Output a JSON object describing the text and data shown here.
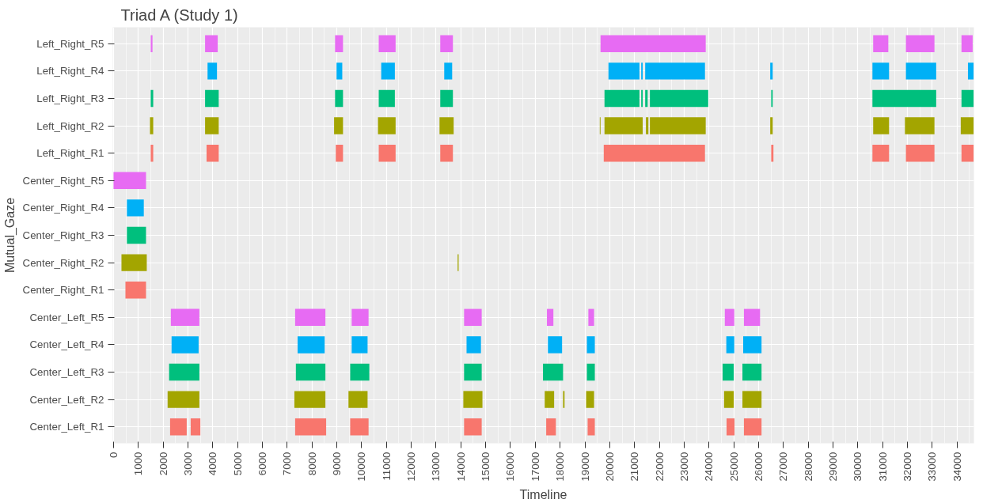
{
  "chart_data": {
    "type": "bar",
    "orientation": "horizontal",
    "title": "Triad A (Study 1)",
    "xlabel": "Timeline",
    "ylabel": "Mutual_Gaze",
    "categories": [
      "Left_Right_R5",
      "Left_Right_R4",
      "Left_Right_R3",
      "Left_Right_R2",
      "Left_Right_R1",
      "Center_Right_R5",
      "Center_Right_R4",
      "Center_Right_R3",
      "Center_Right_R2",
      "Center_Right_R1",
      "Center_Left_R5",
      "Center_Left_R4",
      "Center_Left_R3",
      "Center_Left_R2",
      "Center_Left_R1"
    ],
    "series": [
      {
        "colors": [
          "#e76bf3",
          "#00b0f6",
          "#00bf7d",
          "#a3a500",
          "#f8766d",
          "#e76bf3",
          "#00b0f6",
          "#00bf7d",
          "#a3a500",
          "#f8766d",
          "#e76bf3",
          "#00b0f6",
          "#00bf7d",
          "#a3a500",
          "#f8766d"
        ],
        "base": [
          1500,
          3790,
          1500,
          1470,
          1500,
          0,
          540,
          540,
          320,
          480,
          2310,
          2340,
          2240,
          2180,
          2280
        ],
        "values": [
          70,
          380,
          100,
          130,
          100,
          1310,
          680,
          770,
          1020,
          830,
          1150,
          1090,
          1220,
          1280,
          670
        ]
      },
      {
        "colors": [
          "#e76bf3",
          "#00b0f6",
          "#00bf7d",
          "#a3a500",
          "#f8766d",
          null,
          null,
          null,
          "#a3a500",
          null,
          "#e76bf3",
          "#00b0f6",
          "#00bf7d",
          "#a3a500",
          "#f8766d"
        ],
        "base": [
          3690,
          8990,
          3690,
          3690,
          3750,
          null,
          null,
          null,
          13870,
          null,
          7320,
          7420,
          7350,
          7290,
          3110
        ],
        "values": [
          510,
          230,
          550,
          550,
          490,
          null,
          null,
          null,
          40,
          null,
          1220,
          1090,
          1190,
          1250,
          390
        ]
      },
      {
        "colors": [
          "#e76bf3",
          "#00b0f6",
          "#00bf7d",
          "#a3a500",
          "#f8766d",
          null,
          null,
          null,
          null,
          null,
          "#e76bf3",
          "#00b0f6",
          "#00bf7d",
          "#a3a500",
          "#f8766d"
        ],
        "base": [
          8930,
          10790,
          8930,
          8890,
          8960,
          null,
          null,
          null,
          null,
          null,
          9600,
          9600,
          9540,
          9470,
          7320
        ],
        "values": [
          320,
          550,
          320,
          360,
          290,
          null,
          null,
          null,
          null,
          null,
          680,
          640,
          770,
          770,
          1250
        ]
      },
      {
        "colors": [
          "#e76bf3",
          "#00b0f6",
          "#00bf7d",
          "#a3a500",
          "#f8766d",
          null,
          null,
          null,
          null,
          null,
          "#e76bf3",
          "#00b0f6",
          "#00bf7d",
          "#a3a500",
          "#f8766d"
        ],
        "base": [
          10690,
          13330,
          10690,
          10660,
          10690,
          null,
          null,
          null,
          null,
          null,
          14130,
          14230,
          14130,
          14100,
          9540
        ],
        "values": [
          680,
          320,
          650,
          710,
          680,
          null,
          null,
          null,
          null,
          null,
          710,
          580,
          710,
          770,
          740
        ]
      },
      {
        "colors": [
          "#e76bf3",
          "#00b0f6",
          "#00bf7d",
          "#a3a500",
          "#f8766d",
          null,
          null,
          null,
          null,
          null,
          "#e76bf3",
          "#00b0f6",
          "#00bf7d",
          "#a3a500",
          "#f8766d"
        ],
        "base": [
          13170,
          19950,
          13170,
          13140,
          13170,
          null,
          null,
          null,
          null,
          null,
          17470,
          17510,
          17310,
          17380,
          14130
        ],
        "values": [
          510,
          1250,
          510,
          570,
          510,
          null,
          null,
          null,
          null,
          null,
          260,
          570,
          810,
          380,
          710
        ]
      },
      {
        "colors": [
          "#e76bf3",
          "#00b0f6",
          "#00bf7d",
          "#a3a500",
          "#f8766d",
          null,
          null,
          null,
          null,
          null,
          "#e76bf3",
          "#00b0f6",
          "#00bf7d",
          "#a3a500",
          "#f8766d"
        ],
        "base": [
          19630,
          21270,
          19790,
          19600,
          19760,
          null,
          null,
          null,
          null,
          null,
          19140,
          19080,
          19080,
          18120,
          17440
        ],
        "values": [
          4240,
          60,
          1410,
          30,
          4080,
          null,
          null,
          null,
          null,
          null,
          230,
          320,
          320,
          60,
          390
        ]
      },
      {
        "colors": [
          "#e76bf3",
          "#00b0f6",
          "#00bf7d",
          "#a3a500",
          "#f8766d",
          null,
          null,
          null,
          null,
          null,
          "#e76bf3",
          "#00b0f6",
          "#00bf7d",
          "#a3a500",
          "#f8766d"
        ],
        "base": [
          30620,
          21430,
          21270,
          19790,
          26510,
          null,
          null,
          null,
          null,
          null,
          24640,
          24700,
          24550,
          19050,
          19110
        ],
        "values": [
          610,
          2410,
          60,
          1540,
          90,
          null,
          null,
          null,
          null,
          null,
          380,
          320,
          450,
          320,
          290
        ]
      },
      {
        "colors": [
          "#e76bf3",
          "#00b0f6",
          "#00bf7d",
          "#a3a500",
          "#f8766d",
          null,
          null,
          null,
          null,
          null,
          "#e76bf3",
          "#00b0f6",
          "#00bf7d",
          "#a3a500",
          "#f8766d"
        ],
        "base": [
          31940,
          26470,
          21430,
          21460,
          30590,
          null,
          null,
          null,
          null,
          null,
          25410,
          25380,
          25350,
          24610,
          24710
        ],
        "values": [
          1150,
          100,
          100,
          100,
          670,
          null,
          null,
          null,
          null,
          null,
          650,
          740,
          770,
          390,
          320
        ]
      },
      {
        "colors": [
          "#e76bf3",
          "#00b0f6",
          "#00bf7d",
          "#a3a500",
          "#f8766d",
          null,
          null,
          null,
          null,
          null,
          null,
          null,
          null,
          "#a3a500",
          "#f8766d"
        ],
        "base": [
          34180,
          30590,
          21620,
          21620,
          31940,
          null,
          null,
          null,
          null,
          null,
          null,
          null,
          null,
          25350,
          25410
        ],
        "values": [
          450,
          670,
          2350,
          2250,
          1150,
          null,
          null,
          null,
          null,
          null,
          null,
          null,
          null,
          770,
          710
        ]
      },
      {
        "colors": [
          null,
          "#00b0f6",
          "#00bf7d",
          "#a3a500",
          "#f8766d",
          null,
          null,
          null,
          null,
          null,
          null,
          null,
          null,
          null,
          null
        ],
        "base": [
          null,
          31940,
          26510,
          26470,
          34180,
          null,
          null,
          null,
          null,
          null,
          null,
          null,
          null,
          null,
          null
        ],
        "values": [
          null,
          1220,
          60,
          100,
          490,
          null,
          null,
          null,
          null,
          null,
          null,
          null,
          null,
          null,
          null
        ]
      },
      {
        "colors": [
          null,
          "#00b0f6",
          "#00bf7d",
          "#a3a500",
          null,
          null,
          null,
          null,
          null,
          null,
          null,
          null,
          null,
          null,
          null
        ],
        "base": [
          null,
          34440,
          30590,
          30620,
          null,
          null,
          null,
          null,
          null,
          null,
          null,
          null,
          null,
          null,
          null
        ],
        "values": [
          null,
          230,
          2570,
          640,
          null,
          null,
          null,
          null,
          null,
          null,
          null,
          null,
          null,
          null,
          null
        ]
      },
      {
        "colors": [
          null,
          null,
          "#00bf7d",
          "#a3a500",
          null,
          null,
          null,
          null,
          null,
          null,
          null,
          null,
          null,
          null,
          null
        ],
        "base": [
          null,
          null,
          34180,
          31900,
          null,
          null,
          null,
          null,
          null,
          null,
          null,
          null,
          null,
          null,
          null
        ],
        "values": [
          null,
          null,
          490,
          1190,
          null,
          null,
          null,
          null,
          null,
          null,
          null,
          null,
          null,
          null,
          null
        ]
      },
      {
        "color": "#a3a500",
        "base": [
          null,
          null,
          null,
          34150,
          null,
          null,
          null,
          null,
          null,
          null,
          null,
          null,
          null,
          null,
          null
        ],
        "values": [
          null,
          null,
          null,
          520,
          null,
          null,
          null,
          null,
          null,
          null,
          null,
          null,
          null,
          null,
          null
        ]
      }
    ],
    "xlim": [
      -30,
      34680
    ],
    "xticks": [
      0,
      1000,
      2000,
      3000,
      4000,
      5000,
      6000,
      7000,
      8000,
      9000,
      10000,
      11000,
      12000,
      13000,
      14000,
      15000,
      16000,
      17000,
      18000,
      19000,
      20000,
      21000,
      22000,
      23000,
      24000,
      25000,
      26000,
      27000,
      28000,
      29000,
      30000,
      31000,
      32000,
      33000,
      34000
    ],
    "grid": true
  }
}
